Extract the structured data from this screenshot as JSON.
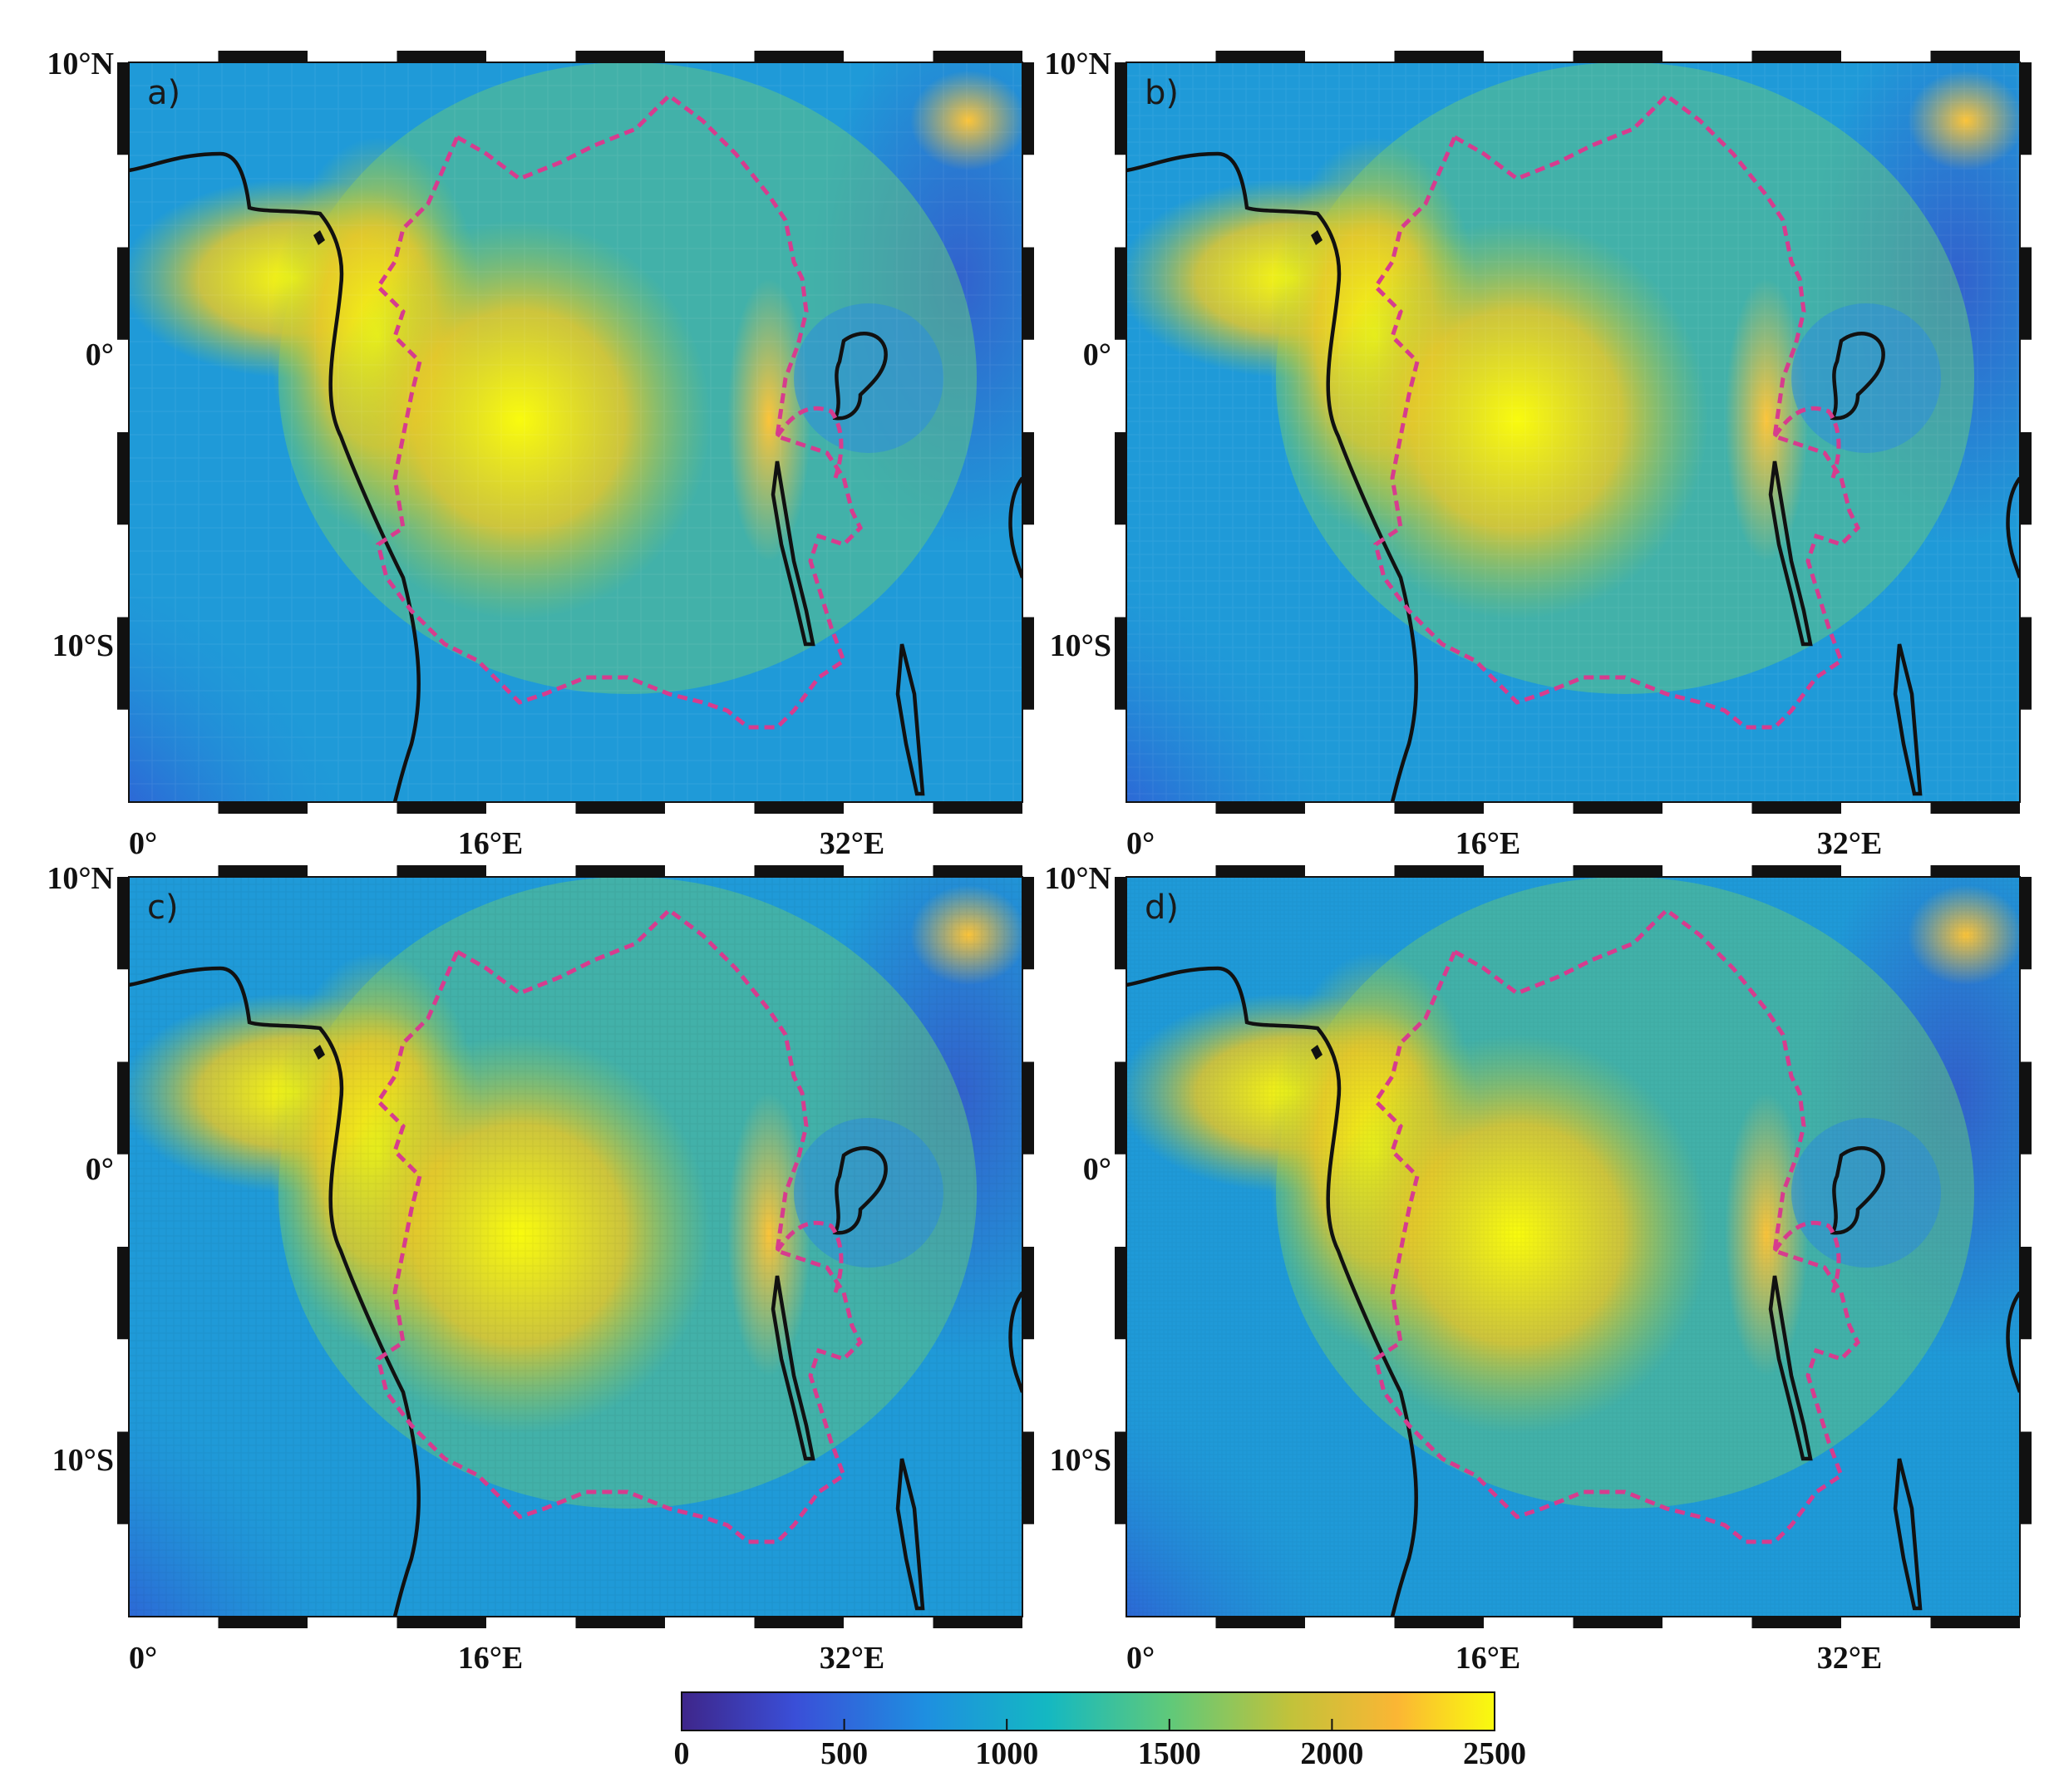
{
  "panels": [
    {
      "id": "a",
      "label": "a)",
      "resolution": "coarse"
    },
    {
      "id": "b",
      "label": "b)",
      "resolution": "medium"
    },
    {
      "id": "c",
      "label": "c)",
      "resolution": "fine"
    },
    {
      "id": "d",
      "label": "d)",
      "resolution": "finest"
    }
  ],
  "lat_ticks": [
    "10°N",
    "0°",
    "10°S"
  ],
  "lon_ticks": [
    "0°",
    "16°E",
    "32°E"
  ],
  "colorbar": {
    "ticks": [
      "0",
      "500",
      "1000",
      "1500",
      "2000",
      "2500"
    ],
    "min": 0,
    "max": 2500,
    "colormap": [
      "#3e268a",
      "#3a4fd8",
      "#1e8fe0",
      "#14b8c2",
      "#5fc97a",
      "#c2c23a",
      "#fbb634",
      "#f9fb0e"
    ]
  },
  "colors": {
    "coastline": "#111111",
    "basin_outline": "#d63c8e"
  }
}
